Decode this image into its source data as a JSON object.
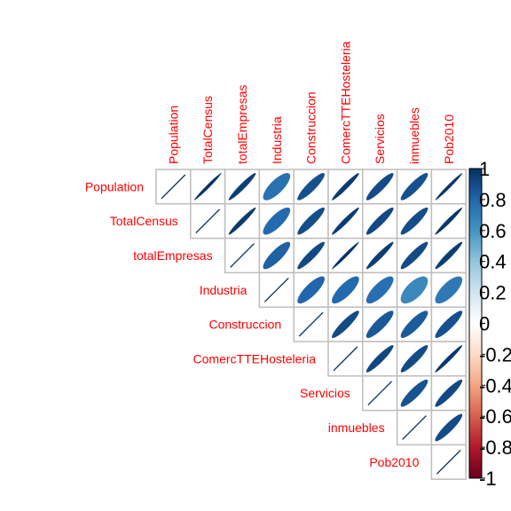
{
  "chart_data": {
    "type": "heatmap",
    "subtype": "correlation-ellipse-upper-triangle",
    "variables": [
      "Population",
      "TotalCensus",
      "totalEmpresas",
      "Industria",
      "Construccion",
      "ComercTTEHosteleria",
      "Servicios",
      "inmuebles",
      "Pob2010"
    ],
    "matrix": [
      [
        1.0,
        0.98,
        0.95,
        0.75,
        0.88,
        0.96,
        0.9,
        0.88,
        0.98
      ],
      [
        0.98,
        1.0,
        0.96,
        0.78,
        0.89,
        0.96,
        0.91,
        0.89,
        0.97
      ],
      [
        0.95,
        0.96,
        1.0,
        0.82,
        0.91,
        0.98,
        0.95,
        0.9,
        0.95
      ],
      [
        0.75,
        0.78,
        0.82,
        1.0,
        0.8,
        0.78,
        0.76,
        0.65,
        0.72
      ],
      [
        0.88,
        0.89,
        0.91,
        0.8,
        1.0,
        0.9,
        0.85,
        0.84,
        0.88
      ],
      [
        0.96,
        0.96,
        0.98,
        0.78,
        0.9,
        1.0,
        0.92,
        0.9,
        0.97
      ],
      [
        0.9,
        0.91,
        0.95,
        0.76,
        0.85,
        0.92,
        1.0,
        0.87,
        0.91
      ],
      [
        0.88,
        0.89,
        0.9,
        0.65,
        0.84,
        0.9,
        0.87,
        1.0,
        0.9
      ],
      [
        0.98,
        0.97,
        0.95,
        0.72,
        0.88,
        0.97,
        0.91,
        0.9,
        1.0
      ]
    ],
    "color_scale": {
      "range": [
        -1,
        1
      ],
      "ticks": [
        "1",
        "0.8",
        "0.6",
        "0.4",
        "0.2",
        "0",
        "-0.2",
        "-0.4",
        "-0.6",
        "-0.8",
        "-1"
      ],
      "colors": [
        "#67001F",
        "#B2182B",
        "#D6604D",
        "#F4A582",
        "#FDDBC7",
        "#FFFFFF",
        "#D1E5F0",
        "#92C5DE",
        "#4393C3",
        "#2166AC",
        "#053061"
      ]
    },
    "label_color": "#FF0000",
    "grid_color": "#BEBEBE"
  }
}
